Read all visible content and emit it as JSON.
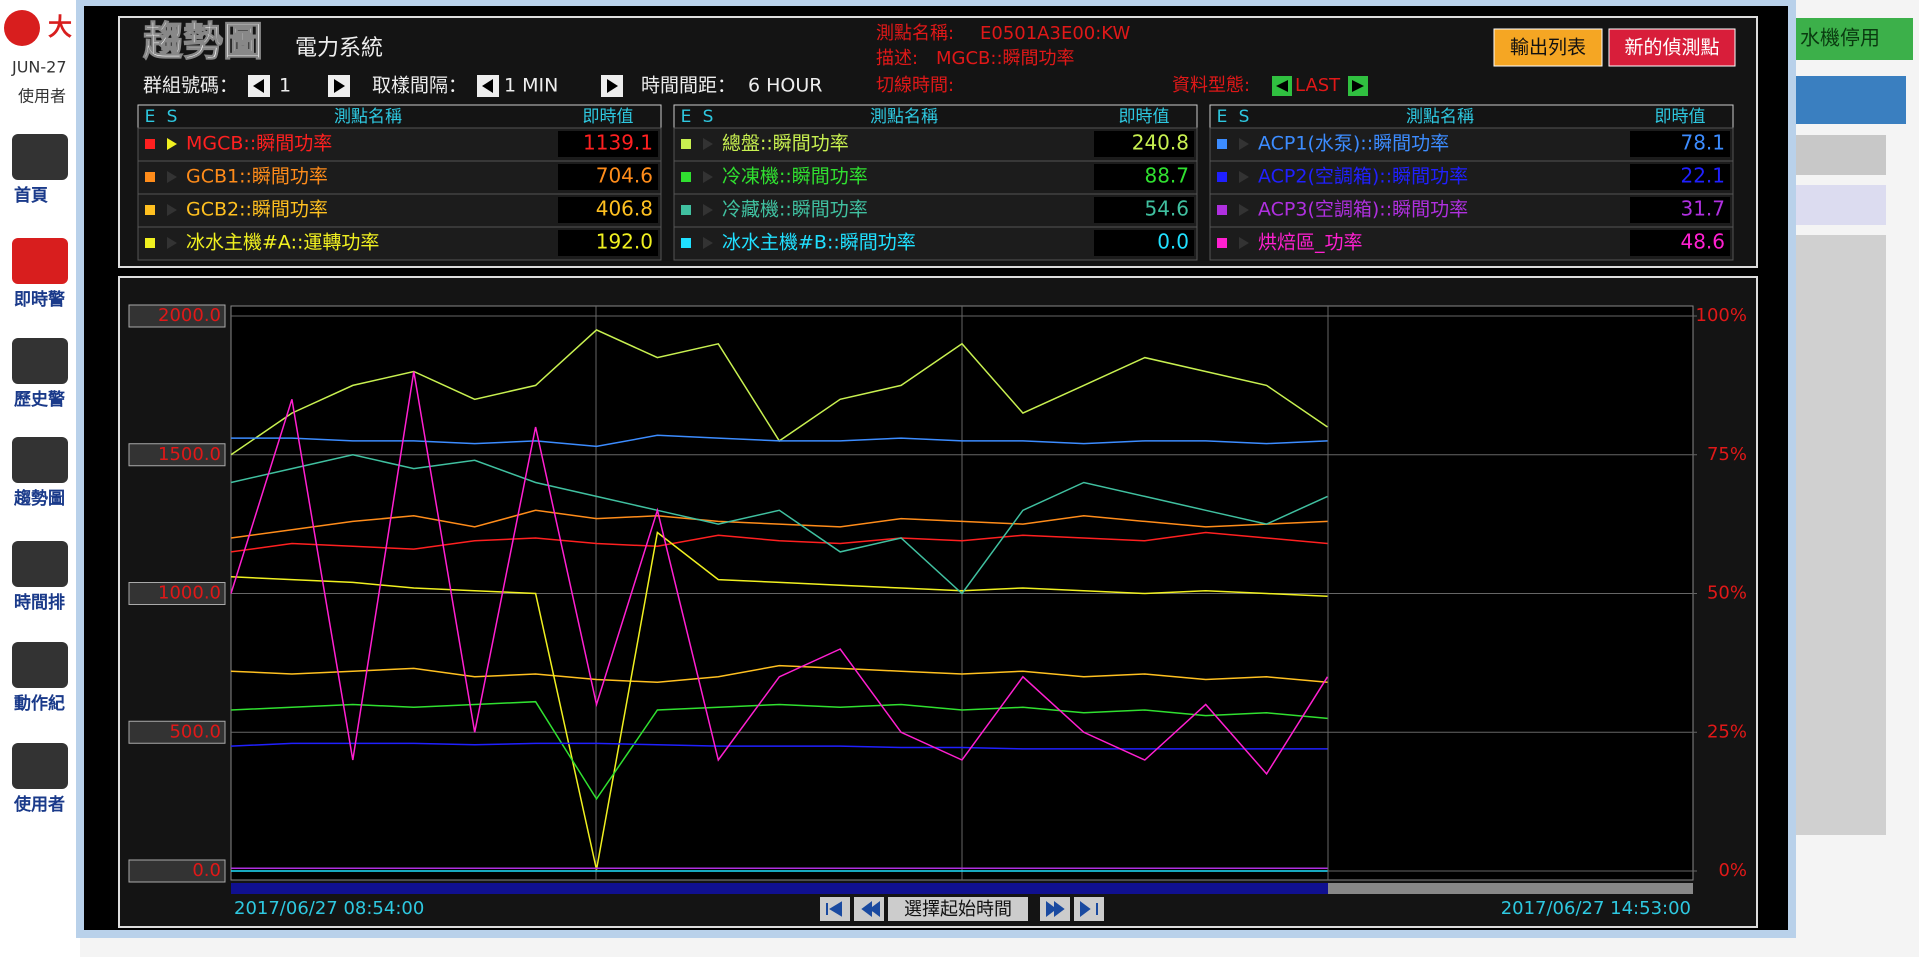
{
  "sidebar": {
    "logo": "大",
    "date": "JUN-27",
    "user": "使用者",
    "menu": [
      "首頁",
      "即時警",
      "歷史警",
      "趨勢圖",
      "時間排",
      "動作紀",
      "使用者"
    ]
  },
  "right_panel": {
    "button": "水機停用"
  },
  "header": {
    "title": "趨勢圖",
    "system": "電力系統",
    "group_label": "群組號碼：",
    "group": "1",
    "sample_label": "取樣間隔：",
    "sample": "1 MIN",
    "span_label": "時間間距：",
    "span": "6 HOUR",
    "point_label": "測點名稱:",
    "point": "E0501A3E00:KW",
    "desc_label": "描述:",
    "desc": "MGCB::瞬間功率",
    "cut_label": "切線時間:",
    "type_label": "資料型態:",
    "data_type": "LAST",
    "export": "輸出列表",
    "new_point": "新的偵測點"
  },
  "table_header": {
    "e": "E",
    "s": "S",
    "name": "測點名稱",
    "value": "即時值"
  },
  "controls": {
    "start_button": "選擇起始時間"
  },
  "chart_data": {
    "type": "line",
    "xlim": [
      "2017/06/27 08:54:00",
      "2017/06/27 14:53:00"
    ],
    "ylim": [
      0,
      2000
    ],
    "yticks": [
      {
        "value": 0,
        "label": "0.0"
      },
      {
        "value": 500,
        "label": "500.0"
      },
      {
        "value": 1000,
        "label": "1000.0"
      },
      {
        "value": 1500,
        "label": "1500.0"
      },
      {
        "value": 2000,
        "label": "2000.0"
      }
    ],
    "y2lim": [
      0,
      100
    ],
    "y2ticks": [
      {
        "value": 0,
        "label": "0%"
      },
      {
        "value": 25,
        "label": "25%"
      },
      {
        "value": 50,
        "label": "50%"
      },
      {
        "value": 75,
        "label": "75%"
      },
      {
        "value": 100,
        "label": "100%"
      }
    ],
    "grid": true,
    "series": [
      {
        "name": "MGCB::瞬間功率",
        "color": "#ff2020",
        "current": "1139.1",
        "values": [
          1150,
          1180,
          1170,
          1160,
          1190,
          1200,
          1180,
          1170,
          1210,
          1190,
          1180,
          1200,
          1190,
          1210,
          1200,
          1190,
          1220,
          1200,
          1180,
          null,
          null,
          null,
          null,
          null,
          null
        ]
      },
      {
        "name": "GCB1::瞬間功率",
        "color": "#ff8c1a",
        "current": "704.6",
        "values": [
          1200,
          1230,
          1260,
          1280,
          1240,
          1300,
          1270,
          1280,
          1260,
          1250,
          1240,
          1270,
          1260,
          1250,
          1280,
          1260,
          1240,
          1250,
          1260,
          null,
          null,
          null,
          null,
          null,
          null
        ]
      },
      {
        "name": "GCB2::瞬間功率",
        "color": "#ffc020",
        "current": "406.8",
        "values": [
          720,
          710,
          720,
          730,
          700,
          710,
          690,
          680,
          700,
          740,
          730,
          720,
          710,
          720,
          700,
          710,
          690,
          700,
          680,
          null,
          null,
          null,
          null,
          null,
          null
        ]
      },
      {
        "name": "冰水主機#A::運轉功率",
        "color": "#f0f020",
        "current": "192.0",
        "values": [
          1060,
          1050,
          1040,
          1020,
          1010,
          1000,
          5,
          1220,
          1050,
          1040,
          1030,
          1020,
          1010,
          1020,
          1010,
          1000,
          1010,
          1000,
          990,
          null,
          null,
          null,
          null,
          null,
          null
        ]
      },
      {
        "name": "總盤::瞬間功率",
        "color": "#c8f050",
        "current": "240.8",
        "values": [
          1500,
          1650,
          1750,
          1800,
          1700,
          1750,
          1950,
          1850,
          1900,
          1550,
          1700,
          1750,
          1900,
          1650,
          1750,
          1850,
          1800,
          1750,
          1600,
          null,
          null,
          null,
          null,
          null,
          null
        ]
      },
      {
        "name": "冷凍機::瞬間功率",
        "color": "#30e030",
        "current": "88.7",
        "values": [
          580,
          590,
          600,
          590,
          600,
          610,
          260,
          580,
          590,
          600,
          590,
          600,
          580,
          590,
          570,
          580,
          560,
          570,
          550,
          null,
          null,
          null,
          null,
          null,
          null
        ]
      },
      {
        "name": "冷藏機::瞬間功率",
        "color": "#40c0a0",
        "current": "54.6",
        "values": [
          1400,
          1450,
          1500,
          1450,
          1480,
          1400,
          1350,
          1300,
          1250,
          1300,
          1150,
          1200,
          1000,
          1300,
          1400,
          1350,
          1300,
          1250,
          1350,
          null,
          null,
          null,
          null,
          null,
          null
        ]
      },
      {
        "name": "冰水主機#B::瞬間功率",
        "color": "#20e0ff",
        "current": "0.0",
        "values": [
          0,
          0,
          0,
          0,
          0,
          0,
          0,
          0,
          0,
          0,
          0,
          0,
          0,
          0,
          0,
          0,
          0,
          0,
          0,
          null,
          null,
          null,
          null,
          null,
          null
        ]
      },
      {
        "name": "ACP1(水泵)::瞬間功率",
        "color": "#3c8cff",
        "current": "78.1",
        "values": [
          1560,
          1560,
          1550,
          1550,
          1540,
          1550,
          1530,
          1570,
          1560,
          1550,
          1550,
          1560,
          1550,
          1550,
          1540,
          1550,
          1550,
          1540,
          1550,
          null,
          null,
          null,
          null,
          null,
          null
        ]
      },
      {
        "name": "ACP2(空調箱)::瞬間功率",
        "color": "#2020ff",
        "current": "22.1",
        "values": [
          450,
          460,
          460,
          460,
          455,
          460,
          460,
          455,
          450,
          450,
          450,
          445,
          445,
          440,
          440,
          440,
          440,
          440,
          440,
          null,
          null,
          null,
          null,
          null,
          null
        ]
      },
      {
        "name": "ACP3(空調箱)::瞬間功率",
        "color": "#b030e0",
        "current": "31.7",
        "values": [
          10,
          10,
          10,
          10,
          10,
          10,
          10,
          10,
          10,
          10,
          10,
          10,
          10,
          10,
          10,
          10,
          10,
          10,
          10,
          null,
          null,
          null,
          null,
          null,
          null
        ]
      },
      {
        "name": "烘焙區_功率",
        "color": "#ff20d0",
        "current": "48.6",
        "values": [
          1000,
          1700,
          400,
          1800,
          500,
          1600,
          600,
          1300,
          400,
          700,
          800,
          500,
          400,
          700,
          500,
          400,
          600,
          350,
          700,
          null,
          null,
          null,
          null,
          null,
          null
        ]
      }
    ]
  }
}
